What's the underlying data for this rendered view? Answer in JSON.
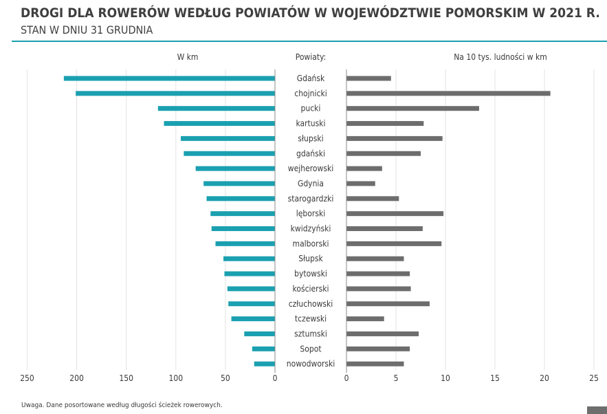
{
  "header": {
    "title": "DROGI DLA ROWERÓW WEDŁUG POWIATÓW W WOJEWÓDZTWIE POMORSKIM W 2021 R.",
    "subtitle": "STAN W DNIU 31 GRUDNIA"
  },
  "note": "Uwaga. Dane posortowane według długości ścieżek rowerowych.",
  "chart_data": {
    "type": "bar",
    "orientation": "horizontal",
    "layout": "back-to-back",
    "category_header": "Powiaty:",
    "categories": [
      "Gdańsk",
      "chojnicki",
      "pucki",
      "kartuski",
      "słupski",
      "gdański",
      "wejherowski",
      "Gdynia",
      "starogardzki",
      "lęborski",
      "kwidzyński",
      "malborski",
      "Słupsk",
      "bytowski",
      "kościerski",
      "człuchowski",
      "tczewski",
      "sztumski",
      "Sopot",
      "nowodworski"
    ],
    "panels": [
      {
        "label": "W km",
        "direction": "left",
        "color": "#1aa0b0",
        "xlim": [
          0,
          250
        ],
        "ticks": [
          250,
          200,
          150,
          100,
          50,
          0
        ],
        "values": [
          213,
          201,
          118,
          112,
          95,
          92,
          80,
          72,
          69,
          65,
          64,
          60,
          52,
          51,
          48,
          47,
          44,
          31,
          23,
          21
        ]
      },
      {
        "label": "Na 10 tys. ludności w km",
        "direction": "right",
        "color": "#6d6d6d",
        "xlim": [
          0,
          25
        ],
        "ticks": [
          0,
          5,
          10,
          15,
          20,
          25
        ],
        "values": [
          4.5,
          20.6,
          13.4,
          7.8,
          9.7,
          7.5,
          3.6,
          2.9,
          5.3,
          9.8,
          7.7,
          9.6,
          5.8,
          6.4,
          6.5,
          8.4,
          3.8,
          7.3,
          6.4,
          5.8
        ]
      }
    ]
  }
}
